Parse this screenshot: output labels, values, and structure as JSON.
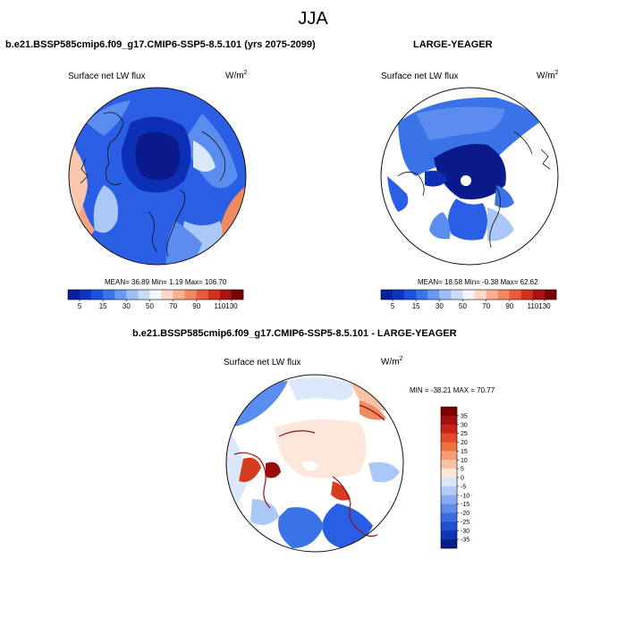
{
  "figure": {
    "season": "JJA"
  },
  "panels": [
    {
      "title": "b.e21.BSSP585cmip6.f09_g17.CMIP6-SSP5-8.5.101 (yrs 2075-2099)",
      "variable": "Surface net LW flux",
      "units": "W/m",
      "units_exp": "2",
      "stats": {
        "mean": "36.89",
        "min": "1.19",
        "max": "106.70"
      },
      "stats_text": "MEAN=  36.89  Min=   1.19  Max=  106.70"
    },
    {
      "title": "LARGE-YEAGER",
      "variable": "Surface net LW flux",
      "units": "W/m",
      "units_exp": "2",
      "stats": {
        "mean": "18.58",
        "min": "-0.38",
        "max": "62.62"
      },
      "stats_text": "MEAN=  18.58  Min=   -0.38  Max=   62.62"
    },
    {
      "title": "b.e21.BSSP585cmip6.f09_g17.CMIP6-SSP5-8.5.101 - LARGE-YEAGER",
      "variable": "Surface net LW flux",
      "units": "W/m",
      "units_exp": "2",
      "stats": {
        "min": "-38.21",
        "max": "70.77"
      },
      "stats_text": "MIN = -38.21 MAX =  70.77"
    }
  ],
  "colorbar_abs": {
    "labels": [
      "5",
      "15",
      "30",
      "50",
      "70",
      "90",
      "110",
      "130"
    ],
    "colors": [
      "#0a1f9e",
      "#0d35c4",
      "#1b52e0",
      "#3a74ec",
      "#6a99f2",
      "#9dbff6",
      "#c9dcf9",
      "#f3f7fd",
      "#fcd9c6",
      "#f9b093",
      "#f48561",
      "#e9593a",
      "#d1311d",
      "#a81310",
      "#7a0000"
    ]
  },
  "colorbar_diff": {
    "labels": [
      "35",
      "30",
      "25",
      "20",
      "15",
      "10",
      "5",
      "0",
      "-5",
      "-10",
      "-15",
      "-20",
      "-25",
      "-30",
      "-35"
    ],
    "colors": [
      "#7a0000",
      "#a50f0f",
      "#c8231a",
      "#e24a2b",
      "#f07040",
      "#f69d75",
      "#fac3a8",
      "#fde6da",
      "#d8e6f9",
      "#b3cbf5",
      "#86abf0",
      "#5c8bec",
      "#3a6ce4",
      "#2050d4",
      "#0e37b8",
      "#051e8a"
    ]
  },
  "map_palette": {
    "deep": "#0a1a8a",
    "navy": "#0d2fb5",
    "blue": "#2a5ee4",
    "mid": "#5b8cf0",
    "light": "#a9c8f7",
    "pale": "#dbe8fa",
    "white": "#ffffff",
    "peach": "#f8c7ae",
    "orange": "#ee8a62",
    "red": "#d83c1f",
    "dark_red": "#9a0e0a"
  }
}
